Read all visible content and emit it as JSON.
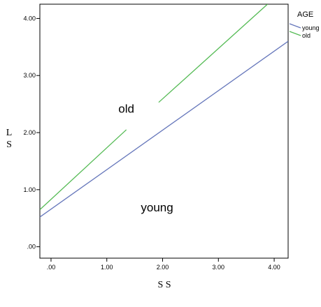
{
  "chart_data": {
    "type": "line",
    "xlabel": "S S",
    "ylabel_lines": [
      "L",
      "S"
    ],
    "xlim": [
      -0.2,
      4.25
    ],
    "ylim": [
      -0.2,
      4.25
    ],
    "x_ticks": [
      0,
      1,
      2,
      3,
      4
    ],
    "x_tick_labels": [
      ".00",
      "1.00",
      "2.00",
      "3.00",
      "4.00"
    ],
    "y_ticks": [
      0,
      1,
      2,
      3,
      4
    ],
    "y_tick_labels": [
      ".00",
      "1.00",
      "2.00",
      "3.00",
      "4.00"
    ],
    "grid": false,
    "legend": {
      "title": "AGE",
      "placement": "right"
    },
    "series": [
      {
        "name": "young",
        "color": "#6677bb",
        "segments": [
          {
            "x": [
              -0.2,
              4.25
            ],
            "y": [
              0.52,
              3.6
            ]
          }
        ]
      },
      {
        "name": "old",
        "color": "#55bb55",
        "segments": [
          {
            "x": [
              -0.2,
              1.35
            ],
            "y": [
              0.65,
              2.05
            ]
          },
          {
            "x": [
              1.93,
              3.88
            ],
            "y": [
              2.53,
              4.25
            ]
          }
        ]
      }
    ],
    "annotations": [
      {
        "text": "old",
        "x": 1.35,
        "y": 2.35
      },
      {
        "text": "young",
        "x": 1.9,
        "y": 0.62
      }
    ]
  }
}
